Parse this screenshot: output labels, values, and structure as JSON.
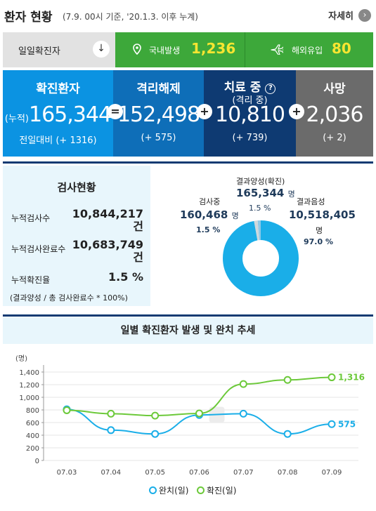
{
  "header": {
    "title": "환자 현황",
    "subtitle": "(7.9. 00시 기준, '20.1.3. 이후 누계)",
    "more_label": "자세히",
    "more_icon": "chevron-right-icon"
  },
  "daily": {
    "label": "일일확진자",
    "arrow_icon": "arrow-down-icon",
    "domestic_label": "국내발생",
    "domestic_value": "1,236",
    "domestic_icon": "location-pin-icon",
    "overseas_label": "해외유입",
    "overseas_value": "80",
    "overseas_icon": "airplane-icon"
  },
  "stats": {
    "confirmed": {
      "title": "확진환자",
      "prefix": "(누적)",
      "value": "165,344",
      "sub": "전일대비 (+ 1316)"
    },
    "released": {
      "title": "격리해제",
      "value": "152,498",
      "sub": "(+ 575)"
    },
    "treatment": {
      "title": "치료 중",
      "title2": "(격리 중)",
      "value": "10,810",
      "sub": "(+ 739)",
      "help": "?"
    },
    "deaths": {
      "title": "사망",
      "value": "2,036",
      "sub": "(+ 2)"
    },
    "op_equals": "=",
    "op_plus": "+"
  },
  "tests": {
    "title": "검사현황",
    "rows": [
      {
        "label": "누적검사수",
        "value": "10,844,217",
        "unit": "건"
      },
      {
        "label": "누적검사완료수",
        "value": "10,683,749",
        "unit": "건"
      },
      {
        "label": "누적확진율",
        "value": "1.5 %"
      }
    ],
    "note": "(결과양성 / 총 검사완료수 * 100%)"
  },
  "donut": {
    "positive_label": "결과양성(확진)",
    "positive_value": "165,344",
    "positive_unit": "명",
    "positive_pct": "1.5 %",
    "testing_label": "검사중",
    "testing_value": "160,468",
    "testing_unit": "명",
    "testing_pct": "1.5 %",
    "negative_label": "결과음성",
    "negative_value": "10,518,405",
    "negative_unit": "명",
    "negative_pct": "97.0 %",
    "colors": {
      "negative": "#1aaee8",
      "positive": "#8ec9e8",
      "testing": "#cfd8dc"
    }
  },
  "chart_data": {
    "type": "line",
    "title": "일별 확진환자 발생 및 완치 추세",
    "ylabel": "(명)",
    "categories": [
      "07.03",
      "07.04",
      "07.05",
      "07.06",
      "07.07",
      "07.08",
      "07.09"
    ],
    "ylim": [
      0,
      1400
    ],
    "yticks": [
      0,
      200,
      400,
      600,
      800,
      1000,
      1200,
      1400
    ],
    "series": [
      {
        "name": "완치(일)",
        "color": "#1aaee8",
        "values": [
          810,
          480,
          420,
          720,
          740,
          420,
          575
        ],
        "end_label": "575"
      },
      {
        "name": "확진(일)",
        "color": "#6cc93a",
        "values": [
          795,
          740,
          710,
          745,
          1210,
          1275,
          1316
        ],
        "end_label": "1,316"
      }
    ],
    "legend": [
      "완치(일)",
      "확진(일)"
    ],
    "legend_position": "bottom"
  }
}
